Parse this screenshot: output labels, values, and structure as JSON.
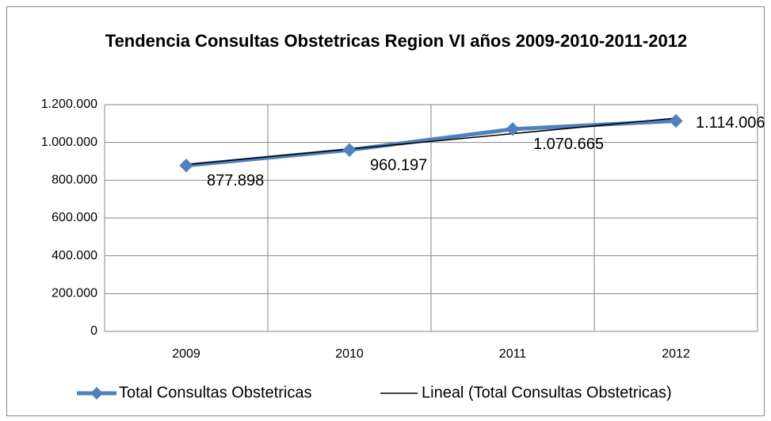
{
  "chart_data": {
    "type": "line",
    "title": "Tendencia Consultas Obstetricas Region VI años 2009-2010-2011-2012",
    "categories": [
      "2009",
      "2010",
      "2011",
      "2012"
    ],
    "series": [
      {
        "name": "Total Consultas Obstetricas",
        "color": "#4f81bd",
        "values": [
          877898,
          960197,
          1070665,
          1114006
        ],
        "value_labels": [
          "877.898",
          "960.197",
          "1.070.665",
          "1.114.006"
        ]
      }
    ],
    "trendline": {
      "name": "Lineal (Total Consultas Obstetricas)",
      "color": "#000000",
      "kind": "linear"
    },
    "ylim": [
      0,
      1200000
    ],
    "yticks": [
      0,
      {
        "value": 200000,
        "label": "200.000"
      },
      {
        "value": 400000,
        "label": "400.000"
      },
      {
        "value": 600000,
        "label": "600.000"
      },
      {
        "value": 800000,
        "label": "800.000"
      },
      {
        "value": 1000000,
        "label": "1.000.000"
      },
      {
        "value": 1200000,
        "label": "1.200.000"
      }
    ],
    "grid": true,
    "legend": "bottom"
  }
}
